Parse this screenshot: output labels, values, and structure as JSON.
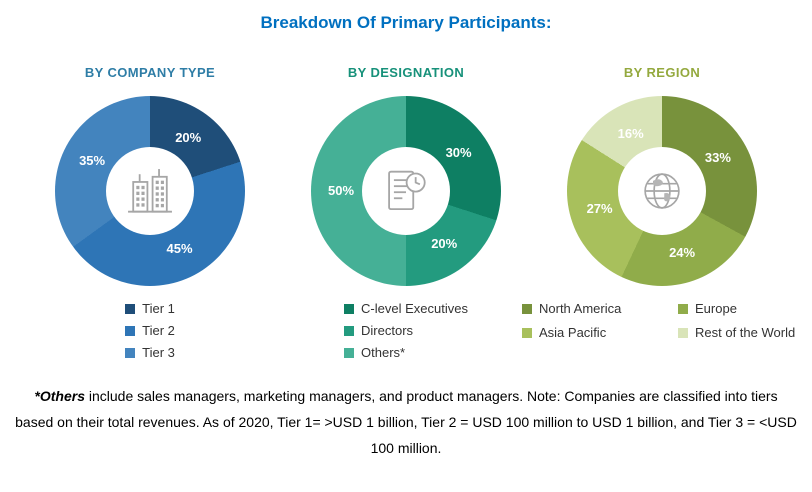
{
  "title": "Breakdown Of Primary Participants:",
  "title_color": "#0070C0",
  "chart_data": [
    {
      "type": "pie",
      "donut": true,
      "title": "BY COMPANY TYPE",
      "title_color": "#2E7DA6",
      "center_icon": "buildings-icon",
      "legend_position": "bottom",
      "slices": [
        {
          "label": "Tier 1",
          "value": 20,
          "color": "#1F4E79"
        },
        {
          "label": "Tier 2",
          "value": 45,
          "color": "#2E75B6"
        },
        {
          "label": "Tier 3",
          "value": 35,
          "color": "#4384BE"
        }
      ]
    },
    {
      "type": "pie",
      "donut": true,
      "title": "BY DESIGNATION",
      "title_color": "#17917A",
      "center_icon": "document-clock-icon",
      "legend_position": "bottom",
      "slices": [
        {
          "label": "C-level Executives",
          "value": 30,
          "color": "#0E7F63"
        },
        {
          "label": "Directors",
          "value": 20,
          "color": "#239B7F"
        },
        {
          "label": "Others*",
          "value": 50,
          "color": "#45B096"
        }
      ]
    },
    {
      "type": "pie",
      "donut": true,
      "title": "BY REGION",
      "title_color": "#94A93E",
      "center_icon": "globe-icon",
      "legend_position": "bottom-grid",
      "slices": [
        {
          "label": "North America",
          "value": 33,
          "color": "#78923C"
        },
        {
          "label": "Europe",
          "value": 24,
          "color": "#90AC4A"
        },
        {
          "label": "Asia Pacific",
          "value": 27,
          "color": "#A8C05C"
        },
        {
          "label": "Rest of the World",
          "value": 16,
          "color": "#D9E4B8"
        }
      ]
    }
  ],
  "footnote": {
    "emphasis": "*Others",
    "rest": " include sales managers, marketing managers, and product managers. Note: Companies are classified into tiers based on their total revenues. As of 2020, Tier 1= >USD 1 billion, Tier 2 = USD 100 million to USD 1 billion, and Tier 3 = <USD 100 million."
  }
}
